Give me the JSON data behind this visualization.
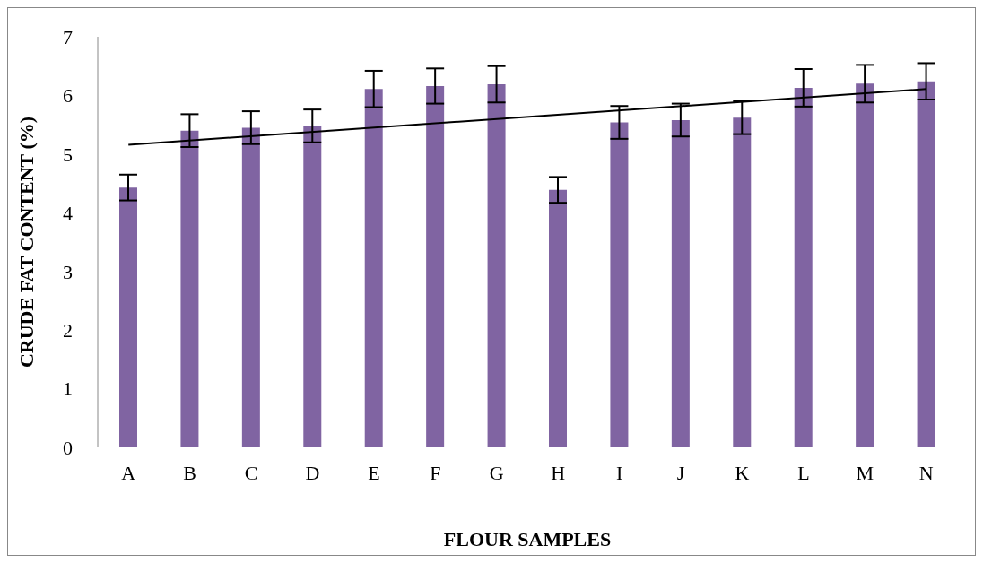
{
  "chart_data": {
    "type": "bar",
    "xlabel": "FLOUR SAMPLES",
    "ylabel": "CRUDE FAT CONTENT (%)",
    "categories": [
      "A",
      "B",
      "C",
      "D",
      "E",
      "F",
      "G",
      "H",
      "I",
      "J",
      "K",
      "L",
      "M",
      "N"
    ],
    "series": [
      {
        "color": "#8064a2",
        "values": [
          4.43,
          5.4,
          5.45,
          5.48,
          6.11,
          6.16,
          6.19,
          4.39,
          5.54,
          5.58,
          5.62,
          6.13,
          6.2,
          6.24
        ],
        "errors": [
          0.22,
          0.28,
          0.28,
          0.28,
          0.31,
          0.3,
          0.31,
          0.22,
          0.28,
          0.28,
          0.28,
          0.32,
          0.32,
          0.31
        ]
      },
      {
        "type": "line",
        "color": "#000000",
        "x": [
          "A",
          "N"
        ],
        "values": [
          5.16,
          6.11
        ]
      }
    ],
    "ylim": [
      0,
      7
    ],
    "yticks": [
      0,
      1,
      2,
      3,
      4,
      5,
      6,
      7
    ],
    "grid": false
  }
}
